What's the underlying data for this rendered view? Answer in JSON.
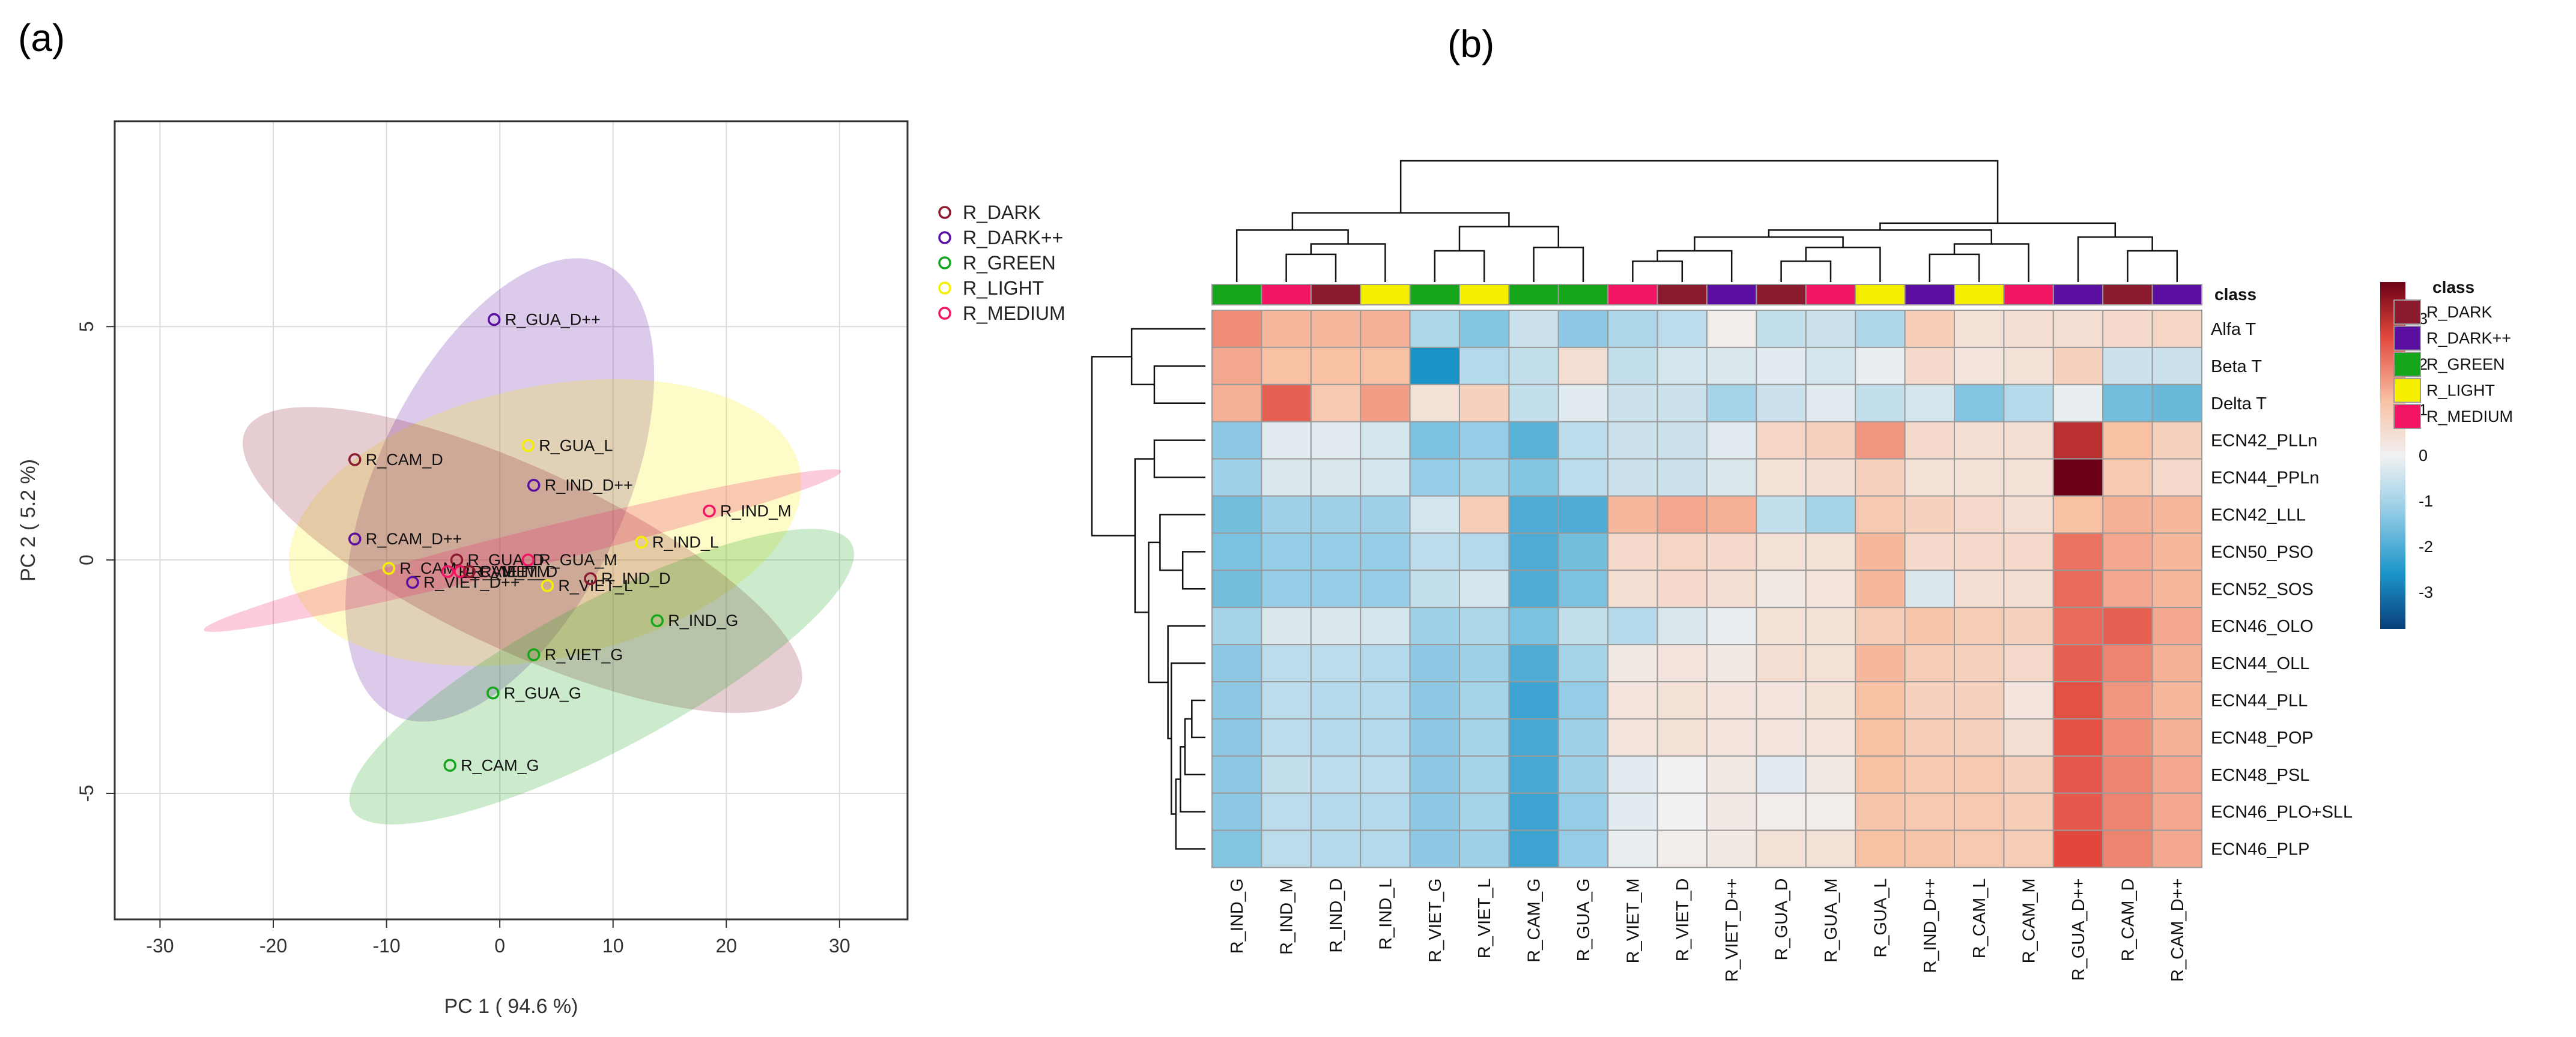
{
  "panels": {
    "a_label": "(a)",
    "b_label": "(b)"
  },
  "colors": {
    "R_DARK": "#8b1a2f",
    "R_DARK++": "#5b0fa0",
    "R_GREEN": "#15a61c",
    "R_LIGHT": "#f6ef00",
    "R_MEDIUM": "#f21564"
  },
  "chart_data": [
    {
      "type": "scatter",
      "title": "",
      "xlabel": "PC 1 ( 94.6 %)",
      "ylabel": "PC 2 ( 5.2 %)",
      "xlim": [
        -34,
        36
      ],
      "ylim": [
        -7.7,
        9.4
      ],
      "xticks": [
        -30,
        -20,
        -10,
        0,
        10,
        20,
        30
      ],
      "yticks": [
        -5,
        0,
        5
      ],
      "xtick_labels": [
        "-30",
        "-20",
        "-10",
        "0",
        "10",
        "20",
        "30"
      ],
      "ytick_labels": [
        "-5",
        "0",
        "5"
      ],
      "grid": true,
      "legend": [
        {
          "label": "R_DARK",
          "group": "R_DARK"
        },
        {
          "label": "R_DARK++",
          "group": "R_DARK++"
        },
        {
          "label": "R_GREEN",
          "group": "R_GREEN"
        },
        {
          "label": "R_LIGHT",
          "group": "R_LIGHT"
        },
        {
          "label": "R_MEDIUM",
          "group": "R_MEDIUM"
        }
      ],
      "ellipses": [
        {
          "group": "R_DARK++",
          "cx": 0,
          "cy": 1.5,
          "semi_major": 22,
          "semi_minor": 11,
          "angle_deg": 65
        },
        {
          "group": "R_LIGHT",
          "cx": 4,
          "cy": 0.8,
          "semi_major": 23,
          "semi_minor": 12,
          "angle_deg": 12
        },
        {
          "group": "R_DARK",
          "cx": 2,
          "cy": 0,
          "semi_major": 27,
          "semi_minor": 8,
          "angle_deg": -25
        },
        {
          "group": "R_GREEN",
          "cx": 9,
          "cy": -2.5,
          "semi_major": 25,
          "semi_minor": 6.5,
          "angle_deg": 28
        },
        {
          "group": "R_MEDIUM",
          "cx": 2,
          "cy": 0.2,
          "semi_major": 29,
          "semi_minor": 1.6,
          "angle_deg": 14
        }
      ],
      "points": [
        {
          "label": "R_GUA_D++",
          "x": -0.5,
          "y": 5.15,
          "group": "R_DARK++"
        },
        {
          "label": "R_CAM_D",
          "x": -12.8,
          "y": 2.15,
          "group": "R_DARK"
        },
        {
          "label": "R_GUA_L",
          "x": 2.5,
          "y": 2.45,
          "group": "R_LIGHT"
        },
        {
          "label": "R_IND_D++",
          "x": 3.0,
          "y": 1.6,
          "group": "R_DARK++"
        },
        {
          "label": "R_IND_M",
          "x": 18.5,
          "y": 1.05,
          "group": "R_MEDIUM"
        },
        {
          "label": "R_CAM_D++",
          "x": -12.8,
          "y": 0.45,
          "group": "R_DARK++"
        },
        {
          "label": "R_IND_L",
          "x": 12.5,
          "y": 0.38,
          "group": "R_LIGHT"
        },
        {
          "label": "R_GUA_D",
          "x": -3.8,
          "y": 0.0,
          "group": "R_DARK"
        },
        {
          "label": "R_GUA_M",
          "x": 2.5,
          "y": 0.0,
          "group": "R_MEDIUM"
        },
        {
          "label": "R_CAM_L",
          "x": -9.8,
          "y": -0.18,
          "group": "R_LIGHT"
        },
        {
          "label": "R_VIET_D++",
          "x": -7.7,
          "y": -0.48,
          "group": "R_DARK++"
        },
        {
          "label": "R_CAM_M",
          "x": -4.6,
          "y": -0.25,
          "group": "R_MEDIUM"
        },
        {
          "label": "R_VIET_M",
          "x": -3.5,
          "y": -0.25,
          "group": "R_MEDIUM"
        },
        {
          "label": "R_VIET_D",
          "x": -2.7,
          "y": -0.25,
          "group": "R_DARK"
        },
        {
          "label": "R_VIET_L",
          "x": 4.2,
          "y": -0.55,
          "group": "R_LIGHT"
        },
        {
          "label": "R_IND_D",
          "x": 8.0,
          "y": -0.4,
          "group": "R_DARK"
        },
        {
          "label": "R_IND_G",
          "x": 13.9,
          "y": -1.3,
          "group": "R_GREEN"
        },
        {
          "label": "R_VIET_G",
          "x": 3.0,
          "y": -2.03,
          "group": "R_GREEN"
        },
        {
          "label": "R_GUA_G",
          "x": -0.6,
          "y": -2.85,
          "group": "R_GREEN"
        },
        {
          "label": "R_CAM_G",
          "x": -4.4,
          "y": -4.4,
          "group": "R_GREEN"
        }
      ]
    },
    {
      "type": "heatmap",
      "class_label": "class",
      "color_scale": {
        "min": -3.8,
        "max": 3.8,
        "ticks": [
          3,
          2,
          1,
          0,
          -1,
          -2,
          -3
        ],
        "tick_labels": [
          "3",
          "2",
          "1",
          "0",
          "-1",
          "-2",
          "-3"
        ],
        "stops": [
          {
            "v": -3.8,
            "c": "#0a3f7a"
          },
          {
            "v": -2.6,
            "c": "#1a94c8"
          },
          {
            "v": -1.2,
            "c": "#96cde6"
          },
          {
            "v": 0,
            "c": "#f1f1f1"
          },
          {
            "v": 1.2,
            "c": "#f8c1a4"
          },
          {
            "v": 2.6,
            "c": "#e2473c"
          },
          {
            "v": 3.8,
            "c": "#6b0016"
          }
        ]
      },
      "legend_title": "class",
      "legend": [
        "R_DARK",
        "R_DARK++",
        "R_GREEN",
        "R_LIGHT",
        "R_MEDIUM"
      ],
      "columns": [
        "R_IND_G",
        "R_IND_M",
        "R_IND_D",
        "R_IND_L",
        "R_VIET_G",
        "R_VIET_L",
        "R_CAM_G",
        "R_GUA_G",
        "R_VIET_M",
        "R_VIET_D",
        "R_VIET_D++",
        "R_GUA_D",
        "R_GUA_M",
        "R_GUA_L",
        "R_IND_D++",
        "R_CAM_L",
        "R_CAM_M",
        "R_GUA_D++",
        "R_CAM_D",
        "R_CAM_D++"
      ],
      "column_classes": [
        "R_GREEN",
        "R_MEDIUM",
        "R_DARK",
        "R_LIGHT",
        "R_GREEN",
        "R_LIGHT",
        "R_GREEN",
        "R_GREEN",
        "R_MEDIUM",
        "R_DARK",
        "R_DARK++",
        "R_DARK",
        "R_MEDIUM",
        "R_LIGHT",
        "R_DARK++",
        "R_LIGHT",
        "R_MEDIUM",
        "R_DARK++",
        "R_DARK",
        "R_DARK++"
      ],
      "rows": [
        "Alfa T",
        "Beta T",
        "Delta T",
        "ECN42_PLLn",
        "ECN44_PPLn",
        "ECN42_LLL",
        "ECN50_PSO",
        "ECN52_SOS",
        "ECN46_OLO",
        "ECN44_OLL",
        "ECN44_PLL",
        "ECN48_POP",
        "ECN48_PSL",
        "ECN46_PLO+SLL",
        "ECN46_PLP"
      ],
      "values": [
        [
          1.8,
          1.3,
          1.3,
          1.4,
          -0.9,
          -1.4,
          -0.5,
          -1.3,
          -0.9,
          -0.7,
          0.1,
          -0.6,
          -0.5,
          -0.9,
          0.9,
          0.4,
          0.5,
          0.5,
          0.6,
          0.7
        ],
        [
          1.5,
          1.2,
          1.2,
          1.2,
          -2.6,
          -0.8,
          -0.6,
          0.5,
          -0.6,
          -0.4,
          -0.3,
          -0.2,
          -0.4,
          -0.1,
          0.6,
          0.3,
          0.4,
          0.8,
          -0.5,
          -0.5
        ],
        [
          1.4,
          2.3,
          1.0,
          1.6,
          0.4,
          0.8,
          -0.6,
          -0.2,
          -0.5,
          -0.5,
          -1.0,
          -0.5,
          -0.2,
          -0.6,
          -0.4,
          -1.4,
          -0.8,
          -0.1,
          -1.6,
          -1.7
        ],
        [
          -1.3,
          -0.2,
          -0.2,
          -0.4,
          -1.5,
          -1.2,
          -1.9,
          -0.7,
          -0.5,
          -0.5,
          -0.2,
          0.7,
          0.8,
          1.7,
          0.6,
          0.5,
          0.5,
          3.0,
          1.2,
          0.8
        ],
        [
          -1.1,
          -0.3,
          -0.3,
          -0.4,
          -1.2,
          -1.0,
          -1.4,
          -0.7,
          -0.5,
          -0.5,
          -0.3,
          0.4,
          0.5,
          0.8,
          0.4,
          0.4,
          0.4,
          3.8,
          1.0,
          0.6
        ],
        [
          -1.6,
          -1.1,
          -1.1,
          -1.1,
          -0.4,
          0.9,
          -2.0,
          -2.0,
          1.3,
          1.5,
          1.4,
          -0.6,
          -1.0,
          1.0,
          0.8,
          0.6,
          0.5,
          1.2,
          1.4,
          1.3
        ],
        [
          -1.5,
          -1.2,
          -1.2,
          -1.2,
          -0.7,
          -0.8,
          -2.0,
          -1.6,
          0.6,
          0.7,
          0.6,
          0.4,
          0.4,
          1.3,
          0.6,
          0.6,
          0.6,
          2.1,
          1.5,
          1.3
        ],
        [
          -1.6,
          -1.2,
          -1.2,
          -1.2,
          -0.6,
          -0.4,
          -2.0,
          -1.5,
          0.5,
          0.6,
          0.5,
          0.2,
          0.3,
          1.3,
          -0.3,
          0.5,
          0.5,
          2.2,
          1.5,
          1.3
        ],
        [
          -1.0,
          -0.3,
          -0.3,
          -0.4,
          -1.1,
          -0.9,
          -1.5,
          -0.6,
          -0.8,
          -0.3,
          -0.1,
          0.4,
          0.4,
          0.9,
          1.1,
          0.9,
          0.8,
          2.2,
          2.3,
          1.5
        ],
        [
          -1.3,
          -0.7,
          -0.7,
          -0.8,
          -1.3,
          -1.1,
          -2.0,
          -1.0,
          0.2,
          0.3,
          0.2,
          0.5,
          0.4,
          1.3,
          0.9,
          0.8,
          0.6,
          2.3,
          1.9,
          1.4
        ],
        [
          -1.3,
          -0.7,
          -0.8,
          -0.8,
          -1.3,
          -1.0,
          -2.2,
          -1.2,
          0.3,
          0.4,
          0.3,
          0.3,
          0.4,
          1.2,
          0.8,
          0.8,
          0.3,
          2.5,
          1.7,
          1.3
        ],
        [
          -1.3,
          -0.7,
          -0.8,
          -0.8,
          -1.3,
          -1.0,
          -2.1,
          -1.1,
          0.3,
          0.4,
          0.3,
          0.3,
          0.3,
          1.2,
          0.9,
          0.8,
          0.5,
          2.5,
          1.8,
          1.4
        ],
        [
          -1.3,
          -0.6,
          -0.7,
          -0.7,
          -1.3,
          -1.0,
          -2.1,
          -1.1,
          -0.2,
          0.0,
          0.2,
          -0.2,
          0.2,
          1.2,
          1.0,
          1.0,
          0.8,
          2.4,
          1.9,
          1.5
        ],
        [
          -1.3,
          -0.7,
          -0.8,
          -0.8,
          -1.3,
          -1.0,
          -2.2,
          -1.2,
          -0.2,
          0.0,
          0.2,
          0.1,
          0.1,
          1.1,
          1.0,
          1.0,
          0.9,
          2.4,
          1.9,
          1.5
        ],
        [
          -1.4,
          -0.7,
          -0.8,
          -0.8,
          -1.3,
          -1.1,
          -2.2,
          -1.2,
          -0.1,
          0.1,
          0.2,
          0.4,
          0.4,
          1.2,
          1.1,
          1.0,
          0.9,
          2.6,
          1.9,
          1.5
        ]
      ],
      "col_dendrogram": {
        "leaf_order": [
          0,
          1,
          2,
          3,
          4,
          5,
          6,
          7,
          8,
          9,
          10,
          11,
          12,
          13,
          14,
          15,
          16,
          17,
          18,
          19
        ],
        "merges": [
          [
            1,
            2,
            0.4
          ],
          [
            3,
            20,
            0.55
          ],
          [
            0,
            21,
            0.75
          ],
          [
            4,
            5,
            0.45
          ],
          [
            6,
            7,
            0.5
          ],
          [
            23,
            24,
            0.8
          ],
          [
            22,
            25,
            1.0
          ],
          [
            8,
            9,
            0.3
          ],
          [
            27,
            10,
            0.45
          ],
          [
            11,
            12,
            0.3
          ],
          [
            29,
            13,
            0.5
          ],
          [
            28,
            30,
            0.65
          ],
          [
            14,
            15,
            0.4
          ],
          [
            32,
            16,
            0.55
          ],
          [
            31,
            33,
            0.75
          ],
          [
            18,
            19,
            0.45
          ],
          [
            17,
            35,
            0.65
          ],
          [
            34,
            36,
            0.85
          ],
          [
            26,
            37,
            1.75
          ]
        ]
      },
      "row_dendrogram": {
        "leaf_order": [
          0,
          1,
          2,
          3,
          4,
          5,
          6,
          7,
          8,
          9,
          10,
          11,
          12,
          13,
          14
        ],
        "merges": [
          [
            1,
            2,
            0.45
          ],
          [
            0,
            15,
            0.65
          ],
          [
            3,
            4,
            0.45
          ],
          [
            6,
            7,
            0.2
          ],
          [
            5,
            18,
            0.4
          ],
          [
            10,
            11,
            0.12
          ],
          [
            20,
            12,
            0.18
          ],
          [
            21,
            13,
            0.22
          ],
          [
            22,
            14,
            0.26
          ],
          [
            9,
            23,
            0.3
          ],
          [
            8,
            24,
            0.33
          ],
          [
            19,
            25,
            0.5
          ],
          [
            17,
            26,
            0.62
          ],
          [
            16,
            27,
            1.0
          ]
        ]
      }
    }
  ]
}
